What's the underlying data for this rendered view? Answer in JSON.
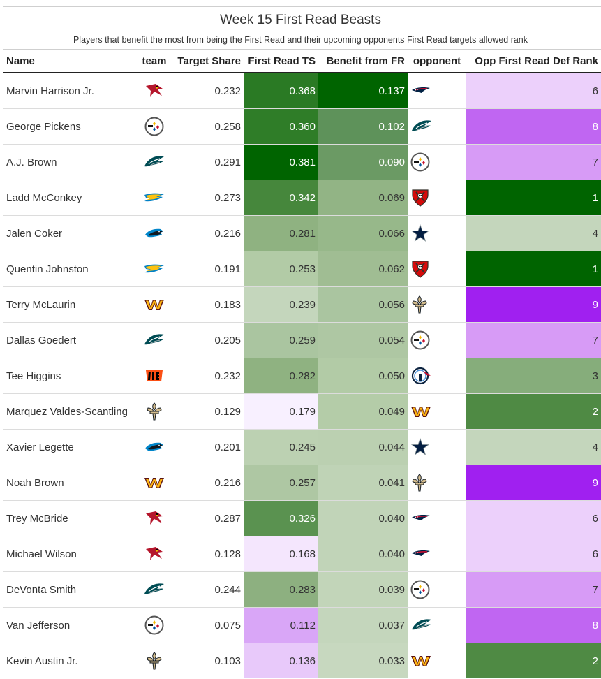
{
  "title": "Week 15 First Read Beasts",
  "subtitle": "Players that benefit the most from being the First Read and their upcoming opponents First Read targets allowed rank",
  "columns": {
    "name": "Name",
    "team": "team",
    "target_share": "Target Share",
    "fr_ts": "First Read TS",
    "benefit": "Benefit from FR",
    "opponent": "opponent",
    "opp_rank": "Opp First Read Def Rank"
  },
  "colors": {
    "green_dark": "#006400",
    "green_light": "#c9d9c0",
    "purple_dark": "#a020f0",
    "purple_light": "#f8f0ff"
  },
  "rows": [
    {
      "name": "Marvin Harrison Jr.",
      "team": "cardinals-logo",
      "target_share": "0.232",
      "fr_ts": "0.368",
      "benefit": "0.137",
      "opponent": "patriots-logo",
      "opp_rank": "6",
      "fr_bg": "#2a7a24",
      "fr_fg": "#ffffff",
      "ben_bg": "#006400",
      "ben_fg": "#ffffff",
      "rank_bg": "#ecd0fb",
      "rank_fg": "#333333"
    },
    {
      "name": "George Pickens",
      "team": "steelers-logo",
      "target_share": "0.258",
      "fr_ts": "0.360",
      "benefit": "0.102",
      "opponent": "eagles-logo",
      "opp_rank": "8",
      "fr_bg": "#2f7d28",
      "fr_fg": "#ffffff",
      "ben_bg": "#5e925a",
      "ben_fg": "#ffffff",
      "rank_bg": "#c066f2",
      "rank_fg": "#ffffff"
    },
    {
      "name": "A.J. Brown",
      "team": "eagles-logo",
      "target_share": "0.291",
      "fr_ts": "0.381",
      "benefit": "0.090",
      "opponent": "steelers-logo",
      "opp_rank": "7",
      "fr_bg": "#006400",
      "fr_fg": "#ffffff",
      "ben_bg": "#6b9a64",
      "ben_fg": "#ffffff",
      "rank_bg": "#d79bf6",
      "rank_fg": "#333333"
    },
    {
      "name": "Ladd McConkey",
      "team": "chargers-logo",
      "target_share": "0.273",
      "fr_ts": "0.342",
      "benefit": "0.069",
      "opponent": "buccaneers-logo",
      "opp_rank": "1",
      "fr_bg": "#46873c",
      "fr_fg": "#ffffff",
      "ben_bg": "#92b485",
      "ben_fg": "#333333",
      "rank_bg": "#006400",
      "rank_fg": "#ffffff"
    },
    {
      "name": "Jalen Coker",
      "team": "panthers-logo",
      "target_share": "0.216",
      "fr_ts": "0.281",
      "benefit": "0.066",
      "opponent": "cowboys-logo",
      "opp_rank": "4",
      "fr_bg": "#8fb281",
      "fr_fg": "#333333",
      "ben_bg": "#97b88a",
      "ben_fg": "#333333",
      "rank_bg": "#c4d6bc",
      "rank_fg": "#333333"
    },
    {
      "name": "Quentin Johnston",
      "team": "chargers-logo",
      "target_share": "0.191",
      "fr_ts": "0.253",
      "benefit": "0.062",
      "opponent": "buccaneers-logo",
      "opp_rank": "1",
      "fr_bg": "#b2cba6",
      "fr_fg": "#333333",
      "ben_bg": "#a0bd93",
      "ben_fg": "#333333",
      "rank_bg": "#006400",
      "rank_fg": "#ffffff"
    },
    {
      "name": "Terry McLaurin",
      "team": "commanders-logo",
      "target_share": "0.183",
      "fr_ts": "0.239",
      "benefit": "0.056",
      "opponent": "saints-logo",
      "opp_rank": "9",
      "fr_bg": "#c4d6bc",
      "fr_fg": "#333333",
      "ben_bg": "#aac5a0",
      "ben_fg": "#333333",
      "rank_bg": "#a020f0",
      "rank_fg": "#ffffff"
    },
    {
      "name": "Dallas Goedert",
      "team": "eagles-logo",
      "target_share": "0.205",
      "fr_ts": "0.259",
      "benefit": "0.054",
      "opponent": "steelers-logo",
      "opp_rank": "7",
      "fr_bg": "#aac5a0",
      "fr_fg": "#333333",
      "ben_bg": "#aec7a3",
      "ben_fg": "#333333",
      "rank_bg": "#d79bf6",
      "rank_fg": "#333333"
    },
    {
      "name": "Tee Higgins",
      "team": "bengals-logo",
      "target_share": "0.232",
      "fr_ts": "0.282",
      "benefit": "0.050",
      "opponent": "titans-logo",
      "opp_rank": "3",
      "fr_bg": "#8fb281",
      "fr_fg": "#333333",
      "ben_bg": "#b2cba6",
      "ben_fg": "#333333",
      "rank_bg": "#86ad7b",
      "rank_fg": "#333333"
    },
    {
      "name": "Marquez Valdes-Scantling",
      "team": "saints-logo",
      "target_share": "0.129",
      "fr_ts": "0.179",
      "benefit": "0.049",
      "opponent": "commanders-logo",
      "opp_rank": "2",
      "fr_bg": "#f8f0ff",
      "fr_fg": "#333333",
      "ben_bg": "#b4cca8",
      "ben_fg": "#333333",
      "rank_bg": "#4f8a44",
      "rank_fg": "#ffffff"
    },
    {
      "name": "Xavier Legette",
      "team": "panthers-logo",
      "target_share": "0.201",
      "fr_ts": "0.245",
      "benefit": "0.044",
      "opponent": "cowboys-logo",
      "opp_rank": "4",
      "fr_bg": "#bcd1b2",
      "fr_fg": "#333333",
      "ben_bg": "#bbd0b1",
      "ben_fg": "#333333",
      "rank_bg": "#c4d6bc",
      "rank_fg": "#333333"
    },
    {
      "name": "Noah Brown",
      "team": "commanders-logo",
      "target_share": "0.216",
      "fr_ts": "0.257",
      "benefit": "0.041",
      "opponent": "saints-logo",
      "opp_rank": "9",
      "fr_bg": "#aec7a3",
      "fr_fg": "#333333",
      "ben_bg": "#bfd3b6",
      "ben_fg": "#333333",
      "rank_bg": "#a020f0",
      "rank_fg": "#ffffff"
    },
    {
      "name": "Trey McBride",
      "team": "cardinals-logo",
      "target_share": "0.287",
      "fr_ts": "0.326",
      "benefit": "0.040",
      "opponent": "patriots-logo",
      "opp_rank": "6",
      "fr_bg": "#5a9250",
      "fr_fg": "#ffffff",
      "ben_bg": "#c1d4b8",
      "ben_fg": "#333333",
      "rank_bg": "#ecd0fb",
      "rank_fg": "#333333"
    },
    {
      "name": "Michael Wilson",
      "team": "cardinals-logo",
      "target_share": "0.128",
      "fr_ts": "0.168",
      "benefit": "0.040",
      "opponent": "patriots-logo",
      "opp_rank": "6",
      "fr_bg": "#f4e6fd",
      "fr_fg": "#333333",
      "ben_bg": "#c1d4b8",
      "ben_fg": "#333333",
      "rank_bg": "#ecd0fb",
      "rank_fg": "#333333"
    },
    {
      "name": "DeVonta Smith",
      "team": "eagles-logo",
      "target_share": "0.244",
      "fr_ts": "0.283",
      "benefit": "0.039",
      "opponent": "steelers-logo",
      "opp_rank": "7",
      "fr_bg": "#8db080",
      "fr_fg": "#333333",
      "ben_bg": "#c2d5b9",
      "ben_fg": "#333333",
      "rank_bg": "#d79bf6",
      "rank_fg": "#333333"
    },
    {
      "name": "Van Jefferson",
      "team": "steelers-logo",
      "target_share": "0.075",
      "fr_ts": "0.112",
      "benefit": "0.037",
      "opponent": "eagles-logo",
      "opp_rank": "8",
      "fr_bg": "#d9a6f7",
      "fr_fg": "#333333",
      "ben_bg": "#c4d6bc",
      "ben_fg": "#333333",
      "rank_bg": "#c066f2",
      "rank_fg": "#ffffff"
    },
    {
      "name": "Kevin Austin Jr.",
      "team": "saints-logo",
      "target_share": "0.103",
      "fr_ts": "0.136",
      "benefit": "0.033",
      "opponent": "commanders-logo",
      "opp_rank": "2",
      "fr_bg": "#e8c9fa",
      "fr_fg": "#333333",
      "ben_bg": "#c7d8bf",
      "ben_fg": "#333333",
      "rank_bg": "#4f8a44",
      "rank_fg": "#ffffff"
    }
  ]
}
